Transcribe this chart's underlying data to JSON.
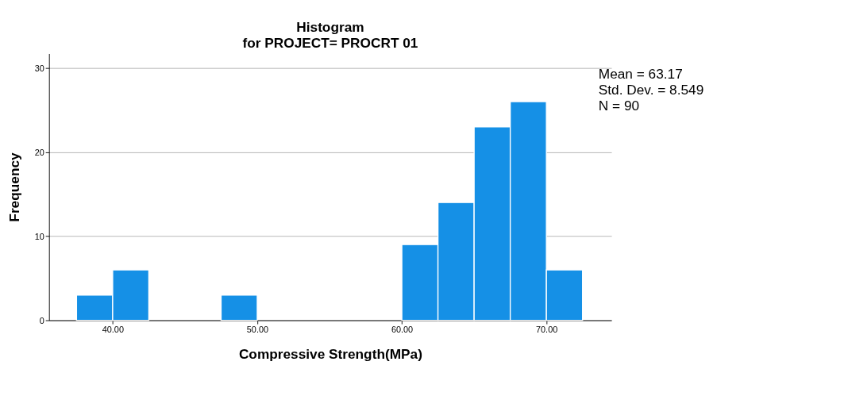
{
  "chart_data": {
    "type": "histogram",
    "title": "Histogram",
    "subtitle": "for PROJECT= PROCRT 01",
    "xlabel": "Compressive Strength(MPa)",
    "ylabel": "Frequency",
    "bins": [
      37.5,
      40,
      42.5,
      45,
      47.5,
      50,
      52.5,
      55,
      57.5,
      60,
      62.5,
      65,
      67.5,
      70,
      72.5
    ],
    "values": [
      3,
      6,
      0,
      0,
      3,
      0,
      0,
      0,
      0,
      9,
      14,
      23,
      26,
      6
    ],
    "color": "#1590e6",
    "xlim": [
      35.6,
      74.5
    ],
    "ylim": [
      0,
      31.7
    ],
    "xticks": [
      {
        "value": 40,
        "label": "40.00"
      },
      {
        "value": 50,
        "label": "50.00"
      },
      {
        "value": 60,
        "label": "60.00"
      },
      {
        "value": 70,
        "label": "70.00"
      }
    ],
    "yticks": [
      0,
      10,
      20,
      30
    ],
    "grid": "y",
    "annotations": [
      "Mean = 63.17",
      "Std. Dev. = 8.549",
      "N = 90"
    ]
  }
}
